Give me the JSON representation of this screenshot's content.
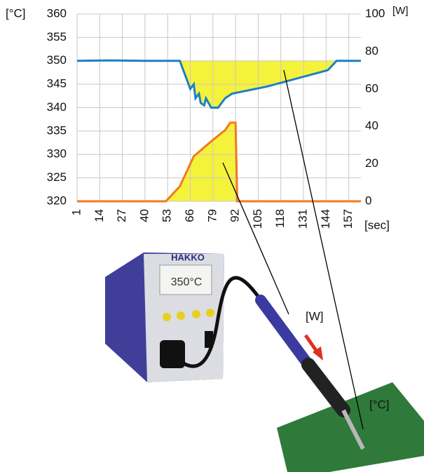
{
  "chart_data": {
    "type": "line",
    "y_label": "[°C]",
    "y2_label": "[W]",
    "x_label": "[sec]",
    "xlim": [
      1,
      164
    ],
    "xticks": [
      1,
      14,
      27,
      40,
      53,
      66,
      79,
      92,
      105,
      118,
      131,
      144,
      157
    ],
    "ylim": [
      320,
      360
    ],
    "yticks": [
      320,
      325,
      330,
      335,
      340,
      345,
      350,
      355,
      360
    ],
    "y2lim": [
      0,
      100
    ],
    "y2ticks": [
      0,
      20,
      40,
      60,
      80,
      100
    ],
    "grid": true,
    "series": [
      {
        "color": "#1f7fc4",
        "fill": "#f5f23c",
        "x": [
          1,
          20,
          40,
          60,
          62,
          66,
          68,
          69,
          71,
          72,
          74,
          75,
          78,
          82,
          86,
          90,
          110,
          130,
          145,
          150,
          164
        ],
        "values": [
          350,
          350.1,
          350,
          350,
          348,
          344,
          345,
          342,
          343,
          341,
          340.5,
          342,
          340,
          340,
          342,
          343,
          344.5,
          346.5,
          348,
          350,
          350
        ]
      },
      {
        "axis": "y2",
        "color": "#f07a1e",
        "fill": "#f5f23c",
        "x": [
          1,
          52,
          60,
          66,
          68,
          78,
          86,
          89,
          92,
          93,
          164
        ],
        "values": [
          0,
          0,
          8,
          20,
          24,
          32,
          38,
          42,
          42,
          0,
          0
        ]
      }
    ]
  },
  "photo": {
    "brand": "HAKKO",
    "display": "350°C",
    "power_label": "[W]",
    "temp_label": "[°C]"
  }
}
